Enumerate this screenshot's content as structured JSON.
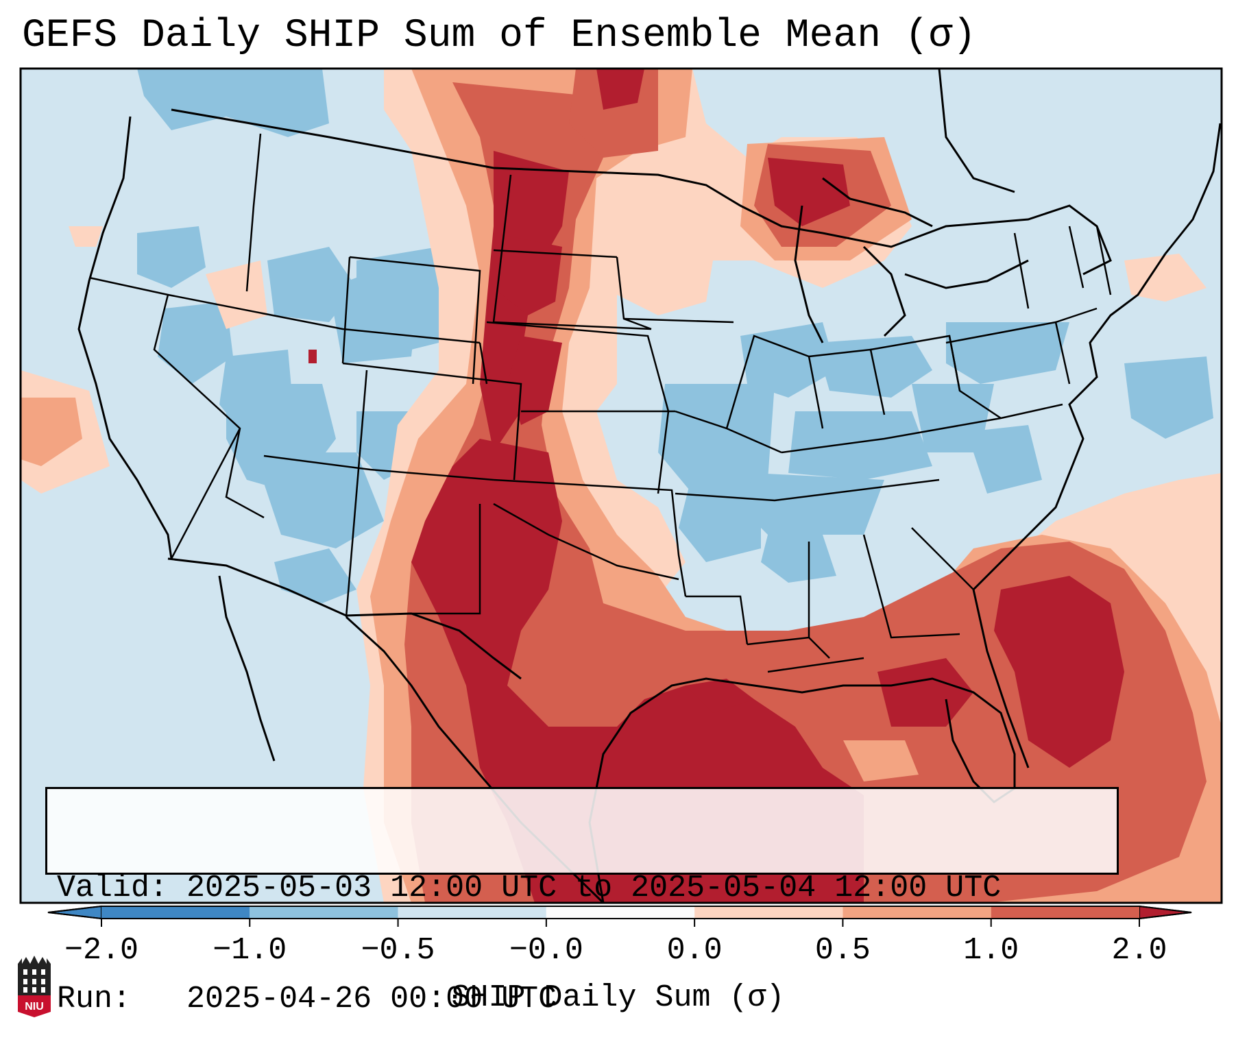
{
  "title": "GEFS Daily SHIP Sum of Ensemble Mean (σ)",
  "info": {
    "valid_label": "Valid:",
    "valid_value": "2025-05-03 12:00 UTC to 2025-05-04 12:00 UTC",
    "run_label": "Run:",
    "run_value": "2025-04-26 00:00 UTC"
  },
  "colorbar": {
    "label": "SHIP Daily Sum (σ)",
    "tick_labels": [
      "−2.0",
      "−1.0",
      "−0.5",
      "−0.0",
      "0.0",
      "0.5",
      "1.0",
      "2.0"
    ],
    "colors": [
      "#3f87c4",
      "#8ec2de",
      "#d1e5f0",
      "#fbfbfb",
      "#fdd5c1",
      "#f3a482",
      "#d45f4f",
      "#b21e2f"
    ],
    "extend": "both"
  },
  "map_colors": {
    "ocean_background": "#d1e5f0",
    "light_blue": "#d1e5f0",
    "mid_blue": "#8ec2de",
    "light_red": "#fdd5c1",
    "mid_red": "#f3a482",
    "red": "#d45f4f",
    "dark_red": "#b21e2f",
    "borders": "#000000"
  },
  "logo": {
    "text": "NIU",
    "color": "#c8102e"
  }
}
